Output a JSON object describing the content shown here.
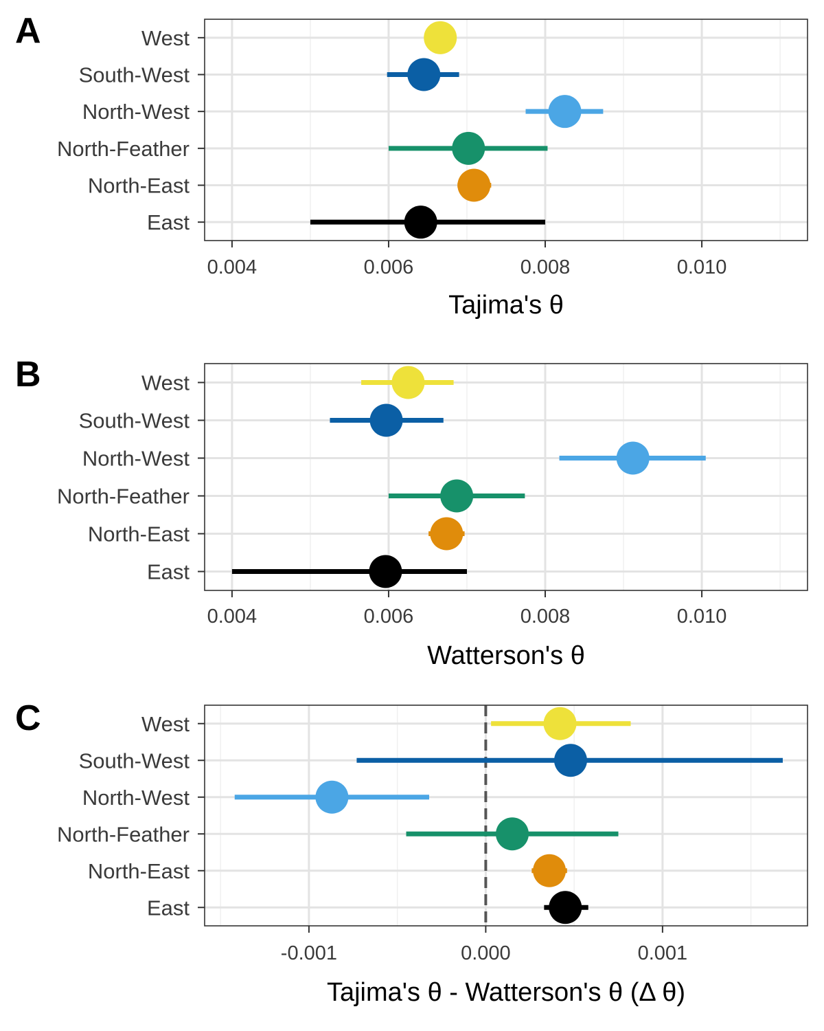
{
  "chart_data": [
    {
      "type": "scatter",
      "panel_label": "A",
      "title": "",
      "xlabel": "Tajima's θ",
      "ylabel": "",
      "xlim": [
        0.00365,
        0.01135
      ],
      "x_ticks": [
        0.004,
        0.006,
        0.008,
        0.01
      ],
      "x_tick_labels": [
        "0.004",
        "0.006",
        "0.008",
        "0.010"
      ],
      "minor_ticks": [
        0.005,
        0.007,
        0.009,
        0.011
      ],
      "grid": true,
      "categories": [
        "West",
        "South-West",
        "North-West",
        "North-Feather",
        "North-East",
        "East"
      ],
      "points": [
        {
          "category": "West",
          "value": 0.00666,
          "lower": 0.00647,
          "upper": 0.00684,
          "color": "#EEE13A"
        },
        {
          "category": "South-West",
          "value": 0.00645,
          "lower": 0.00598,
          "upper": 0.0069,
          "color": "#0B5FA5"
        },
        {
          "category": "North-West",
          "value": 0.00825,
          "lower": 0.00775,
          "upper": 0.00874,
          "color": "#4BA6E5"
        },
        {
          "category": "North-Feather",
          "value": 0.00702,
          "lower": 0.006,
          "upper": 0.00803,
          "color": "#17916A"
        },
        {
          "category": "North-East",
          "value": 0.00709,
          "lower": 0.00688,
          "upper": 0.00731,
          "color": "#E08C0B"
        },
        {
          "category": "East",
          "value": 0.00641,
          "lower": 0.005,
          "upper": 0.008,
          "color": "#000000"
        }
      ]
    },
    {
      "type": "scatter",
      "panel_label": "B",
      "title": "",
      "xlabel": "Watterson's θ",
      "ylabel": "",
      "xlim": [
        0.00365,
        0.01135
      ],
      "x_ticks": [
        0.004,
        0.006,
        0.008,
        0.01
      ],
      "x_tick_labels": [
        "0.004",
        "0.006",
        "0.008",
        "0.010"
      ],
      "minor_ticks": [
        0.005,
        0.007,
        0.009,
        0.011
      ],
      "grid": true,
      "categories": [
        "West",
        "South-West",
        "North-West",
        "North-Feather",
        "North-East",
        "East"
      ],
      "points": [
        {
          "category": "West",
          "value": 0.00625,
          "lower": 0.00565,
          "upper": 0.00683,
          "color": "#EEE13A"
        },
        {
          "category": "South-West",
          "value": 0.00597,
          "lower": 0.00525,
          "upper": 0.0067,
          "color": "#0B5FA5"
        },
        {
          "category": "North-West",
          "value": 0.00912,
          "lower": 0.00818,
          "upper": 0.01005,
          "color": "#4BA6E5"
        },
        {
          "category": "North-Feather",
          "value": 0.00687,
          "lower": 0.006,
          "upper": 0.00774,
          "color": "#17916A"
        },
        {
          "category": "North-East",
          "value": 0.00674,
          "lower": 0.00651,
          "upper": 0.00697,
          "color": "#E08C0B"
        },
        {
          "category": "East",
          "value": 0.00596,
          "lower": 0.004,
          "upper": 0.007,
          "color": "#000000"
        }
      ]
    },
    {
      "type": "scatter",
      "panel_label": "C",
      "title": "",
      "xlabel": "Tajima's θ - Watterson's θ (Δ θ)",
      "ylabel": "",
      "xlim": [
        -0.00159,
        0.00182
      ],
      "x_ticks": [
        -0.001,
        0.0,
        0.001
      ],
      "x_tick_labels": [
        "-0.001",
        "0.000",
        "0.001"
      ],
      "minor_ticks": [
        -0.0015,
        -0.0005,
        0.0005,
        0.0015
      ],
      "reference_line": 0.0,
      "grid": true,
      "categories": [
        "West",
        "South-West",
        "North-West",
        "North-Feather",
        "North-East",
        "East"
      ],
      "points": [
        {
          "category": "West",
          "value": 0.00042,
          "lower": 3e-05,
          "upper": 0.00082,
          "color": "#EEE13A"
        },
        {
          "category": "South-West",
          "value": 0.00048,
          "lower": -0.00073,
          "upper": 0.00168,
          "color": "#0B5FA5"
        },
        {
          "category": "North-West",
          "value": -0.00087,
          "lower": -0.00142,
          "upper": -0.00032,
          "color": "#4BA6E5"
        },
        {
          "category": "North-Feather",
          "value": 0.00015,
          "lower": -0.00045,
          "upper": 0.00075,
          "color": "#17916A"
        },
        {
          "category": "North-East",
          "value": 0.00036,
          "lower": 0.00026,
          "upper": 0.00046,
          "color": "#E08C0B"
        },
        {
          "category": "East",
          "value": 0.00045,
          "lower": 0.00033,
          "upper": 0.00058,
          "color": "#000000"
        }
      ]
    }
  ]
}
